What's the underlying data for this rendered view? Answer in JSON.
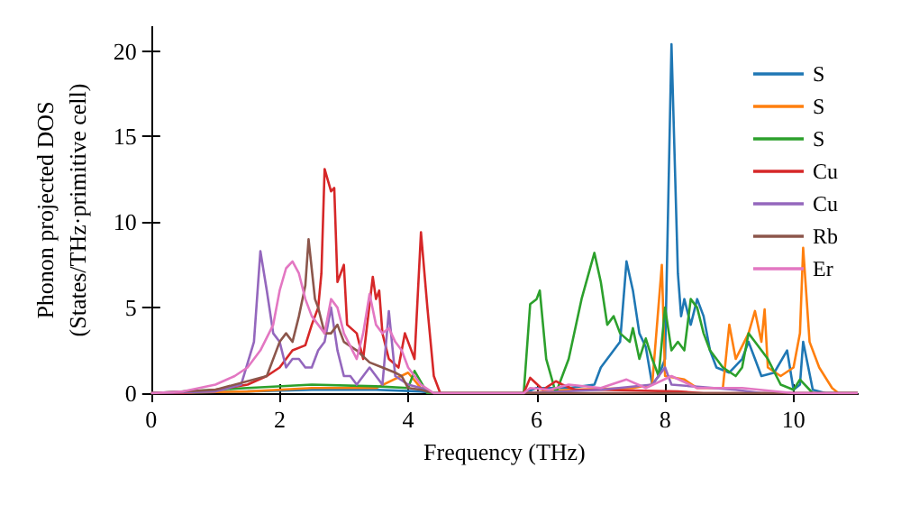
{
  "chart_data": {
    "type": "line",
    "xlabel": "Frequency (THz)",
    "ylabel": "Phonon projected DOS\n(States/THz·primitive cell)",
    "xlim": [
      0,
      11
    ],
    "ylim": [
      0,
      21.4
    ],
    "xticks": [
      0,
      2,
      4,
      6,
      8,
      10
    ],
    "yticks": [
      0,
      5,
      10,
      15,
      20
    ],
    "grid": false,
    "legend": "top right",
    "marker": "none",
    "line_style": "solid",
    "series": [
      {
        "name": "S",
        "color": "#1f77b4",
        "x": [
          0,
          1.5,
          2.5,
          3.5,
          4.2,
          4.4,
          5.8,
          6.0,
          6.5,
          6.9,
          7.0,
          7.2,
          7.3,
          7.4,
          7.5,
          7.6,
          7.7,
          7.8,
          7.9,
          8.0,
          8.1,
          8.2,
          8.25,
          8.3,
          8.4,
          8.5,
          8.6,
          8.7,
          8.8,
          9.0,
          9.2,
          9.3,
          9.4,
          9.5,
          9.7,
          9.9,
          10.0,
          10.1,
          10.15,
          10.3,
          10.5,
          11
        ],
        "values": [
          0,
          0.1,
          0.2,
          0.2,
          0.1,
          0,
          0,
          0.3,
          0.3,
          0.5,
          1.5,
          2.5,
          3.0,
          7.7,
          6.0,
          3.5,
          2.7,
          0.5,
          1.0,
          2.0,
          20.4,
          7.0,
          4.5,
          5.5,
          4.0,
          5.5,
          4.5,
          2.5,
          1.5,
          1.2,
          2.0,
          3.0,
          2.0,
          1.0,
          1.2,
          2.5,
          0.2,
          0.5,
          3.0,
          0.2,
          0,
          0
        ]
      },
      {
        "name": "S",
        "color": "#ff7f0e",
        "x": [
          0,
          1.5,
          2.5,
          3.0,
          3.5,
          4.0,
          4.2,
          4.4,
          5.8,
          6.5,
          7.5,
          7.8,
          7.95,
          8.0,
          8.3,
          8.5,
          8.9,
          9.0,
          9.1,
          9.3,
          9.4,
          9.5,
          9.55,
          9.6,
          9.8,
          10.0,
          10.1,
          10.15,
          10.25,
          10.4,
          10.6,
          10.7,
          11
        ],
        "values": [
          0,
          0.1,
          0.3,
          0.3,
          0.3,
          1.2,
          0.3,
          0,
          0,
          0.2,
          0.3,
          0.5,
          7.5,
          1.0,
          0.8,
          0.3,
          0.3,
          4.0,
          2.0,
          3.5,
          4.8,
          3.0,
          4.9,
          1.5,
          1.0,
          1.5,
          3.5,
          8.5,
          3.0,
          1.5,
          0.3,
          0,
          0
        ]
      },
      {
        "name": "S",
        "color": "#2ca02c",
        "x": [
          0,
          1.5,
          2.5,
          3.5,
          4.0,
          4.1,
          4.3,
          5.8,
          5.9,
          6.0,
          6.05,
          6.15,
          6.3,
          6.5,
          6.7,
          6.9,
          7.0,
          7.1,
          7.2,
          7.3,
          7.45,
          7.5,
          7.6,
          7.7,
          7.8,
          7.9,
          8.0,
          8.1,
          8.2,
          8.3,
          8.4,
          8.5,
          8.6,
          8.7,
          8.9,
          9.1,
          9.2,
          9.3,
          9.4,
          9.6,
          9.8,
          10.0,
          10.1,
          10.3,
          11
        ],
        "values": [
          0,
          0.3,
          0.5,
          0.4,
          0.3,
          1.3,
          0,
          0,
          5.2,
          5.5,
          6.0,
          2.0,
          0,
          2.0,
          5.5,
          8.2,
          6.5,
          4.0,
          4.5,
          3.5,
          3.0,
          3.8,
          2.0,
          3.2,
          2.0,
          1.0,
          5.0,
          2.5,
          3.0,
          2.5,
          5.5,
          5.0,
          3.5,
          2.5,
          1.5,
          1.0,
          1.5,
          3.5,
          3.0,
          2.0,
          0.5,
          0.2,
          0.8,
          0,
          0
        ]
      },
      {
        "name": "Cu",
        "color": "#d62728",
        "x": [
          0,
          0.5,
          1.0,
          1.5,
          1.8,
          2.0,
          2.2,
          2.4,
          2.5,
          2.6,
          2.65,
          2.7,
          2.8,
          2.85,
          2.9,
          3.0,
          3.05,
          3.2,
          3.3,
          3.45,
          3.5,
          3.55,
          3.6,
          3.7,
          3.85,
          3.95,
          4.1,
          4.2,
          4.3,
          4.4,
          4.5,
          5.8,
          5.9,
          6.1,
          6.3,
          6.4,
          6.6,
          7.0,
          8.2,
          8.6,
          11
        ],
        "values": [
          0,
          0,
          0.2,
          0.5,
          1.0,
          1.5,
          2.5,
          2.8,
          4.0,
          5.0,
          7.0,
          13.1,
          11.8,
          12.0,
          6.5,
          7.5,
          4.0,
          3.5,
          2.0,
          6.8,
          5.5,
          6.0,
          3.5,
          2.0,
          1.5,
          3.5,
          2.0,
          9.4,
          5.0,
          1.0,
          0,
          0,
          0.9,
          0.2,
          0.7,
          0.5,
          0.2,
          0.2,
          0.1,
          0,
          0
        ]
      },
      {
        "name": "Cu",
        "color": "#9467bd",
        "x": [
          0,
          1.0,
          1.4,
          1.6,
          1.7,
          1.8,
          1.9,
          2.0,
          2.1,
          2.2,
          2.3,
          2.4,
          2.5,
          2.6,
          2.7,
          2.8,
          2.9,
          3.0,
          3.1,
          3.2,
          3.4,
          3.6,
          3.7,
          3.8,
          4.0,
          4.2,
          4.4,
          5.8,
          7.0,
          7.8,
          8.0,
          8.1,
          9.1,
          9.5,
          11
        ],
        "values": [
          0,
          0.1,
          0.5,
          3.0,
          8.3,
          6.0,
          3.5,
          3.0,
          1.5,
          2.0,
          2.0,
          1.5,
          1.5,
          2.5,
          3.0,
          5.0,
          2.5,
          1.0,
          1.0,
          0.5,
          1.5,
          0.5,
          4.8,
          1.0,
          0.5,
          0.3,
          0,
          0,
          0.2,
          0.5,
          1.5,
          0.5,
          0.2,
          0,
          0
        ]
      },
      {
        "name": "Rb",
        "color": "#8c564b",
        "x": [
          0,
          1.0,
          1.8,
          2.0,
          2.1,
          2.2,
          2.3,
          2.4,
          2.45,
          2.55,
          2.6,
          2.7,
          2.8,
          2.9,
          3.0,
          3.2,
          3.4,
          3.6,
          3.8,
          3.9,
          4.0,
          4.2,
          4.4,
          11
        ],
        "values": [
          0,
          0.2,
          1.0,
          3.0,
          3.5,
          3.0,
          4.5,
          6.3,
          9.0,
          5.5,
          5.0,
          3.5,
          3.5,
          4.0,
          3.0,
          2.5,
          1.8,
          1.5,
          1.2,
          1.0,
          0.3,
          0.2,
          0,
          0
        ]
      },
      {
        "name": "Er",
        "color": "#e377c2",
        "x": [
          0,
          0.5,
          1.0,
          1.3,
          1.5,
          1.7,
          1.9,
          2.0,
          2.1,
          2.2,
          2.3,
          2.4,
          2.5,
          2.6,
          2.7,
          2.8,
          2.9,
          3.0,
          3.2,
          3.3,
          3.4,
          3.5,
          3.6,
          3.7,
          3.8,
          3.9,
          4.0,
          4.1,
          4.2,
          4.4,
          5.8,
          5.9,
          6.2,
          6.5,
          7.0,
          7.4,
          7.7,
          8.1,
          8.5,
          9.2,
          10.0,
          11
        ],
        "values": [
          0,
          0.1,
          0.5,
          1.0,
          1.5,
          2.5,
          4.0,
          6.0,
          7.3,
          7.7,
          7.0,
          5.5,
          4.5,
          4.0,
          3.5,
          5.5,
          5.0,
          3.5,
          2.0,
          3.5,
          5.8,
          4.0,
          3.5,
          3.8,
          3.0,
          2.5,
          1.5,
          1.0,
          0.5,
          0,
          0,
          0.3,
          0.2,
          0.5,
          0.3,
          0.8,
          0.3,
          1.0,
          0.3,
          0.3,
          0,
          0
        ]
      }
    ]
  }
}
